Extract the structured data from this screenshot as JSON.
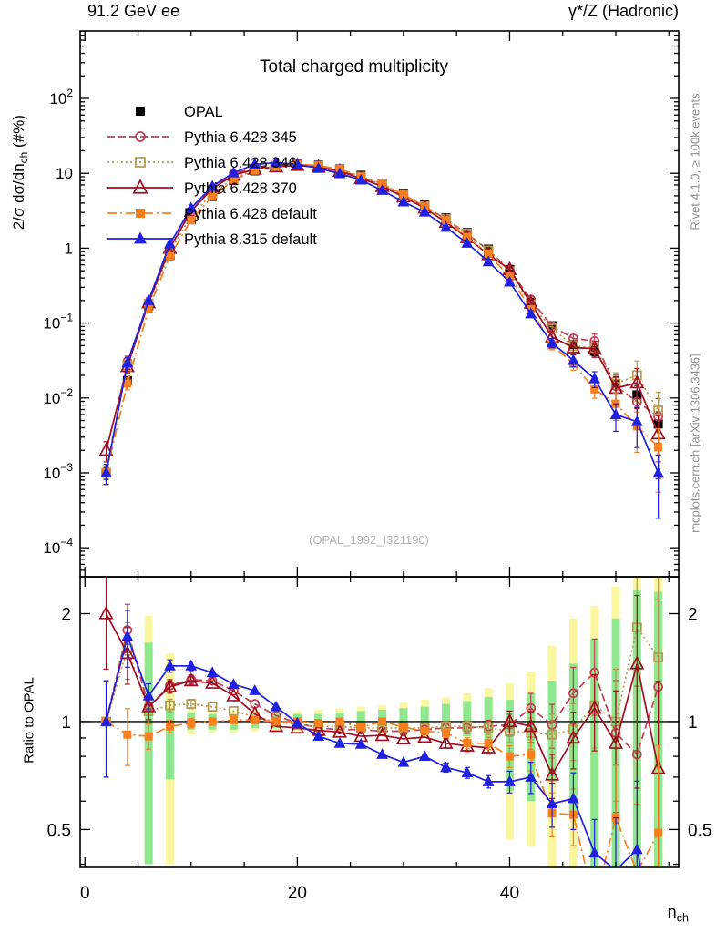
{
  "header": {
    "left": "91.2 GeV ee",
    "right": "γ*/Z (Hadronic)"
  },
  "side_notes": {
    "top": "Rivet 4.1.0, ≥ 100k events",
    "bottom": "mcplots.cern.ch [arXiv:1306.3436]"
  },
  "watermark": "(OPAL_1992_I321190)",
  "labels": {
    "ylabel_main": {
      "a": "2/σ  dσ/dn",
      "sub": "ch",
      "b": " (#%)"
    },
    "ylabel_ratio": "Ratio to OPAL",
    "xlabel": {
      "a": "n",
      "sub": "ch"
    }
  },
  "chart_data": {
    "type": "line",
    "title": "Total charged multiplicity",
    "xlabel": "n_ch",
    "ylabel": "2/sigma dsigma/dn_ch (#%)",
    "ratio_ylabel": "Ratio to OPAL",
    "legend_position": "top-left",
    "grid": false,
    "x_range": [
      -0.45,
      55.92
    ],
    "y_range_main": [
      4.1e-05,
      795
    ],
    "y_range_ratio": [
      0.392,
      2.535
    ],
    "x_major_ticks": [
      {
        "v": 0,
        "t": "0"
      },
      {
        "v": 20,
        "t": "20"
      },
      {
        "v": 40,
        "t": "40"
      }
    ],
    "x_minor_step": 5,
    "y_ticks_main": [
      {
        "v": 100,
        "t": "10",
        "e": "2"
      },
      {
        "v": 10,
        "t": "10",
        "e": ""
      },
      {
        "v": 1,
        "t": "1",
        "e": ""
      },
      {
        "v": 0.1,
        "t": "10",
        "e": "−1"
      },
      {
        "v": 0.01,
        "t": "10",
        "e": "−2"
      },
      {
        "v": 0.001,
        "t": "10",
        "e": "−3"
      },
      {
        "v": 0.0001,
        "t": "10",
        "e": "−4"
      }
    ],
    "y_ticks_ratio": [
      {
        "v": 2,
        "t": "2"
      },
      {
        "v": 1,
        "t": "1"
      },
      {
        "v": 0.5,
        "t": "0.5"
      }
    ],
    "x": [
      2,
      4,
      6,
      8,
      10,
      12,
      14,
      16,
      18,
      20,
      22,
      24,
      26,
      28,
      30,
      32,
      34,
      36,
      38,
      40,
      42,
      44,
      46,
      48,
      50,
      52,
      54
    ],
    "opal_values": [
      0.001,
      0.017,
      0.17,
      0.8,
      2.4,
      4.9,
      8.0,
      10.8,
      12.6,
      13.3,
      12.8,
      11.4,
      9.4,
      7.3,
      5.4,
      3.8,
      2.55,
      1.62,
      0.97,
      0.52,
      0.19,
      0.092,
      0.052,
      0.042,
      0.0155,
      0.011,
      0.0045
    ],
    "err_frac": [
      0.3,
      0.18,
      0.08,
      0.04,
      0.03,
      0.02,
      0.02,
      0.015,
      0.015,
      0.015,
      0.015,
      0.015,
      0.02,
      0.02,
      0.02,
      0.025,
      0.03,
      0.035,
      0.04,
      0.07,
      0.1,
      0.14,
      0.18,
      0.24,
      0.4,
      0.55,
      0.75
    ],
    "series": [
      {
        "name": "OPAL",
        "color": "#000000",
        "marker": "square-filled",
        "line": "none"
      },
      {
        "name": "Pythia 6.428 345",
        "color": "#c43c53",
        "marker": "circle-open",
        "line": "dash",
        "ratio": [
          1.0,
          1.8,
          1.1,
          1.26,
          1.31,
          1.3,
          1.22,
          1.12,
          1.04,
          0.99,
          0.96,
          0.95,
          0.95,
          0.94,
          0.94,
          0.95,
          0.96,
          0.96,
          0.97,
          0.98,
          1.09,
          0.98,
          1.2,
          1.37,
          0.93,
          0.81,
          1.25
        ]
      },
      {
        "name": "Pythia 6.428 346",
        "color": "#b5984a",
        "marker": "square-open",
        "line": "dot",
        "ratio": [
          1.0,
          1.6,
          1.07,
          1.11,
          1.12,
          1.1,
          1.07,
          1.03,
          1.0,
          0.98,
          0.97,
          0.97,
          0.96,
          0.96,
          0.96,
          0.96,
          0.97,
          0.97,
          0.96,
          0.94,
          0.93,
          0.92,
          0.95,
          1.11,
          1.0,
          1.83,
          1.51
        ]
      },
      {
        "name": "Pythia 6.428 370",
        "color": "#a00d20",
        "marker": "triangle-open",
        "line": "solid",
        "ratio": [
          2.0,
          1.55,
          1.1,
          1.25,
          1.3,
          1.28,
          1.18,
          1.05,
          0.97,
          0.96,
          0.945,
          0.935,
          0.91,
          0.915,
          0.895,
          0.905,
          0.87,
          0.855,
          0.845,
          1.0,
          0.97,
          0.71,
          0.9,
          1.09,
          0.87,
          1.45,
          0.74
        ]
      },
      {
        "name": "Pythia 6.428 default",
        "color": "#f97e1c",
        "marker": "square-filled",
        "line": "dashdot",
        "ratio": [
          1.0,
          0.92,
          0.91,
          0.97,
          0.99,
          1.0,
          1.01,
          1.01,
          1.0,
          1.0,
          0.99,
          1.0,
          0.965,
          1.0,
          0.965,
          0.94,
          0.93,
          0.87,
          0.87,
          0.8,
          0.81,
          0.555,
          0.55,
          0.31,
          0.54,
          0.38,
          0.49
        ]
      },
      {
        "name": "Pythia 8.315 default",
        "color": "#2020e0",
        "marker": "triangle-filled",
        "line": "solid",
        "ratio": [
          1.0,
          1.73,
          1.18,
          1.43,
          1.43,
          1.37,
          1.27,
          1.22,
          1.1,
          0.99,
          0.91,
          0.87,
          0.865,
          0.81,
          0.77,
          0.8,
          0.745,
          0.72,
          0.68,
          0.68,
          0.7,
          0.59,
          0.61,
          0.43,
          0.385,
          0.44,
          0.22
        ]
      }
    ],
    "bands": {
      "outer_color": "#fbf6a0",
      "inner_color": "#8fe88f",
      "entries": [
        [
          6,
          0.4,
          1.97,
          0.4,
          1.66
        ],
        [
          8,
          0.4,
          1.55,
          0.69,
          1.09
        ],
        [
          10,
          0.92,
          1.08,
          0.95,
          1.06
        ],
        [
          12,
          0.93,
          1.08,
          0.95,
          1.05
        ],
        [
          14,
          0.93,
          1.07,
          0.95,
          1.05
        ],
        [
          16,
          0.94,
          1.07,
          0.96,
          1.05
        ],
        [
          18,
          0.94,
          1.07,
          0.96,
          1.05
        ],
        [
          20,
          0.94,
          1.07,
          0.96,
          1.05
        ],
        [
          22,
          0.94,
          1.08,
          0.96,
          1.05
        ],
        [
          24,
          0.93,
          1.09,
          0.95,
          1.06
        ],
        [
          26,
          0.93,
          1.1,
          0.95,
          1.07
        ],
        [
          28,
          0.92,
          1.11,
          0.94,
          1.08
        ],
        [
          30,
          0.91,
          1.13,
          0.94,
          1.09
        ],
        [
          32,
          0.9,
          1.15,
          0.93,
          1.1
        ],
        [
          34,
          0.89,
          1.17,
          0.92,
          1.12
        ],
        [
          36,
          0.87,
          1.2,
          0.91,
          1.14
        ],
        [
          38,
          0.84,
          1.24,
          0.89,
          1.17
        ],
        [
          40,
          0.47,
          1.28,
          0.64,
          1.15
        ],
        [
          42,
          0.45,
          1.38,
          0.6,
          1.2
        ],
        [
          44,
          0.39,
          1.63,
          0.68,
          1.3
        ],
        [
          46,
          0.39,
          1.94,
          0.55,
          1.45
        ],
        [
          48,
          0.39,
          2.1,
          0.39,
          1.7
        ],
        [
          50,
          0.39,
          2.38,
          0.39,
          1.94
        ],
        [
          52,
          0.39,
          2.52,
          0.39,
          2.32
        ],
        [
          54,
          0.39,
          2.52,
          0.39,
          2.3
        ]
      ]
    }
  }
}
